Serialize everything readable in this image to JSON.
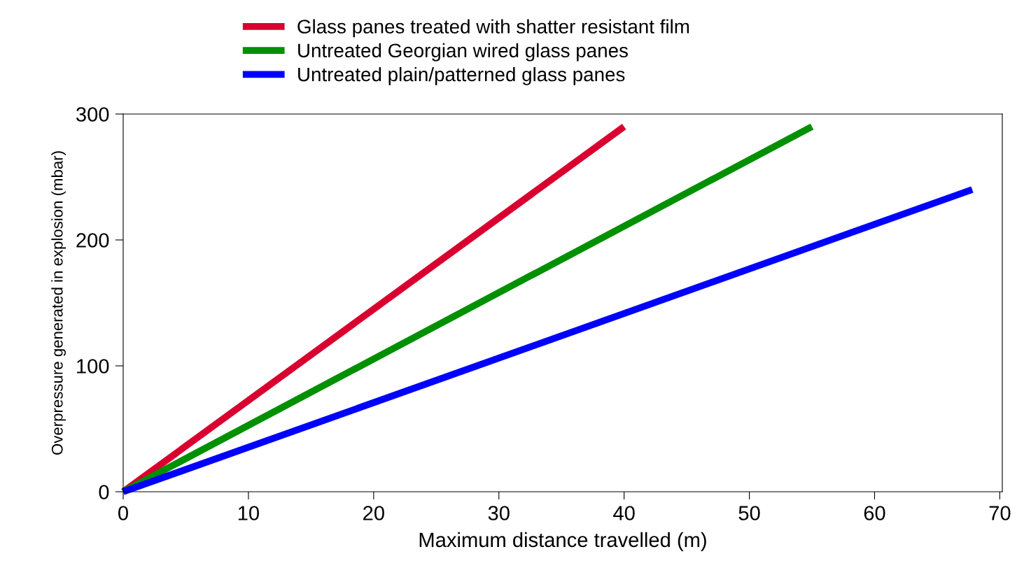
{
  "chart_data": {
    "type": "line",
    "xlabel": "Maximum distance travelled (m)",
    "ylabel": "Overpressure generated in explosion (mbar)",
    "series": [
      {
        "name": "Glass panes treated with shatter resistant film",
        "color": "#d90030",
        "x": [
          0,
          40
        ],
        "values": [
          0,
          290
        ]
      },
      {
        "name": "Untreated Georgian wired glass panes",
        "color": "#009000",
        "x": [
          0,
          55
        ],
        "values": [
          0,
          290
        ]
      },
      {
        "name": "Untreated plain/patterned glass panes",
        "color": "#0000ff",
        "x": [
          0,
          67.8
        ],
        "values": [
          0,
          240
        ]
      }
    ],
    "xlim": [
      0,
      70.2
    ],
    "xticks": [
      0,
      10,
      20,
      30,
      40,
      50,
      60,
      70
    ],
    "ylim": [
      0,
      300
    ],
    "yticks": [
      0,
      100,
      200,
      300
    ],
    "grid": false,
    "legend": "top",
    "marker": "none",
    "line_style": "solid"
  }
}
